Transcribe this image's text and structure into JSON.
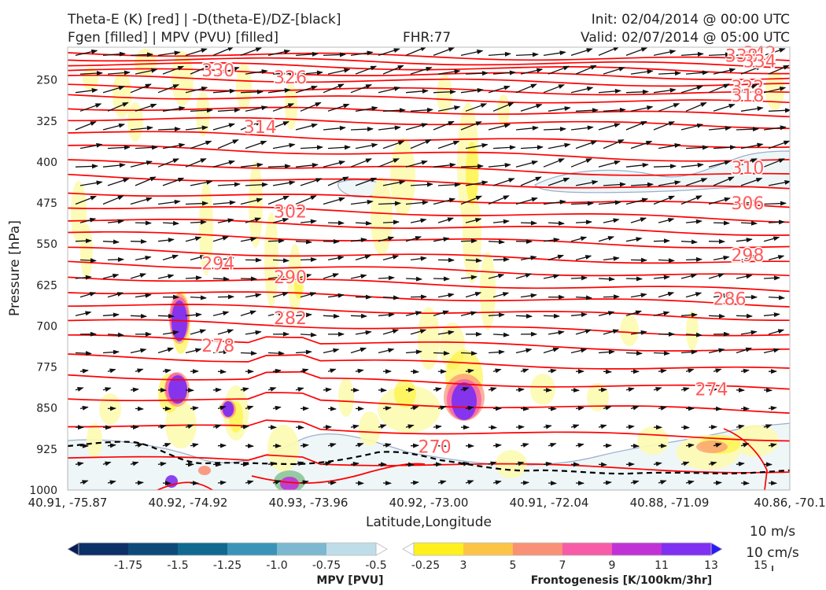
{
  "header": {
    "title_line1": "Theta-E (K) [red] | -D(theta-E)/DZ-[black]",
    "title_line2": "Fgen [filled] | MPV (PVU) [filled]",
    "fhr": "FHR:77",
    "init": "Init: 02/04/2014 @ 00:00 UTC",
    "valid": "Valid: 02/07/2014 @ 05:00 UTC"
  },
  "chart_data": {
    "type": "cross-section",
    "xlabel": "Latitude,Longitude",
    "ylabel": "Pressure [hPa]",
    "x_ticks": [
      "40.91, -75.87",
      "40.92, -74.92",
      "40.93, -73.96",
      "40.92, -73.00",
      "40.91, -72.04",
      "40.88, -71.09",
      "40.86, -70.1"
    ],
    "y_ticks": [
      250,
      325,
      400,
      475,
      550,
      625,
      700,
      775,
      850,
      925,
      1000
    ],
    "ylim": [
      1000,
      190
    ],
    "theta_e_labels": [
      {
        "value": "342",
        "x": 5.75,
        "p": 200
      },
      {
        "value": "338",
        "x": 5.6,
        "p": 205
      },
      {
        "value": "334",
        "x": 5.75,
        "p": 215
      },
      {
        "value": "330",
        "x": 1.25,
        "p": 232
      },
      {
        "value": "326",
        "x": 1.85,
        "p": 245
      },
      {
        "value": "322",
        "x": 5.65,
        "p": 262
      },
      {
        "value": "318",
        "x": 5.65,
        "p": 278
      },
      {
        "value": "314",
        "x": 1.6,
        "p": 335
      },
      {
        "value": "310",
        "x": 5.65,
        "p": 410
      },
      {
        "value": "306",
        "x": 5.65,
        "p": 475
      },
      {
        "value": "302",
        "x": 1.85,
        "p": 490
      },
      {
        "value": "298",
        "x": 5.65,
        "p": 570
      },
      {
        "value": "294",
        "x": 1.25,
        "p": 585
      },
      {
        "value": "290",
        "x": 1.85,
        "p": 610
      },
      {
        "value": "286",
        "x": 5.5,
        "p": 650
      },
      {
        "value": "282",
        "x": 1.85,
        "p": 685
      },
      {
        "value": "278",
        "x": 1.25,
        "p": 735
      },
      {
        "value": "274",
        "x": 5.35,
        "p": 815
      },
      {
        "value": "270",
        "x": 3.05,
        "p": 920
      }
    ],
    "wind_key": {
      "label1": "10 m/s",
      "label2": "10 cm/s"
    }
  },
  "mpv_colorbar": {
    "label": "MPV [PVU]",
    "ticks": [
      "-1.75",
      "-1.5",
      "-1.25",
      "-1.0",
      "-0.75",
      "-0.5",
      "-0.25"
    ],
    "colors": [
      "#081d58",
      "#0c3068",
      "#0d4a7a",
      "#12698f",
      "#3b94b8",
      "#7cb8d0",
      "#bfdde8",
      "#ffffff"
    ]
  },
  "fgen_colorbar": {
    "label": "Frontogenesis [K/100km/3hr]",
    "ticks": [
      "3",
      "5",
      "7",
      "9",
      "11",
      "13",
      "15"
    ],
    "colors": [
      "#ffffff",
      "#fff01e",
      "#fdc347",
      "#f99176",
      "#f65ca7",
      "#c032d6",
      "#7f30f0",
      "#2a1bf5"
    ]
  },
  "colors": {
    "theta_e": "#ff0000",
    "theta_e_label": "#ff5a5a",
    "arrows": "#111111",
    "mpv_contour": "#9aaecb",
    "mpv_fill": "#eef6f8",
    "fgen_light": "#fdfbb0"
  }
}
